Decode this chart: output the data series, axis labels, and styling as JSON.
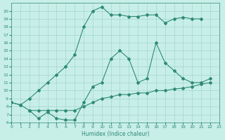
{
  "line1_x": [
    0,
    1,
    2,
    3,
    4,
    5,
    6,
    7,
    8,
    9,
    10,
    11,
    12,
    13,
    14,
    15,
    16,
    17,
    18,
    19,
    20,
    21
  ],
  "line1_y": [
    8.5,
    8.2,
    9.0,
    10.0,
    11.0,
    12.0,
    13.0,
    14.5,
    18.0,
    20.0,
    20.5,
    19.5,
    19.5,
    19.3,
    19.3,
    19.5,
    19.5,
    18.5,
    19.0,
    19.2,
    19.0,
    19.0
  ],
  "line2_x": [
    2,
    3,
    4,
    5,
    6,
    7,
    8,
    9,
    10,
    11,
    12,
    13,
    14,
    15,
    16,
    17,
    18,
    19,
    20,
    21,
    22
  ],
  "line2_y": [
    7.5,
    6.5,
    7.3,
    6.5,
    6.3,
    6.3,
    8.5,
    10.5,
    11.0,
    14.0,
    15.0,
    14.0,
    11.0,
    11.5,
    16.0,
    13.5,
    12.5,
    11.5,
    11.0,
    11.0,
    11.5
  ],
  "line3_x": [
    0,
    1,
    2,
    3,
    4,
    5,
    6,
    7,
    8,
    9,
    10,
    11,
    12,
    13,
    14,
    15,
    16,
    17,
    18,
    19,
    20,
    21,
    22
  ],
  "line3_y": [
    8.5,
    8.2,
    7.5,
    7.5,
    7.5,
    7.5,
    7.5,
    7.5,
    8.0,
    8.5,
    9.0,
    9.2,
    9.5,
    9.5,
    9.7,
    9.7,
    10.0,
    10.0,
    10.2,
    10.3,
    10.5,
    10.8,
    11.0
  ],
  "color": "#2E8B72",
  "bg_color": "#C8EEE8",
  "grid_color": "#A0D8CE",
  "xlabel": "Humidex (Indice chaleur)",
  "ylim": [
    6,
    21
  ],
  "xlim": [
    0,
    23
  ],
  "yticks": [
    6,
    7,
    8,
    9,
    10,
    11,
    12,
    13,
    14,
    15,
    16,
    17,
    18,
    19,
    20
  ],
  "xticks": [
    0,
    1,
    2,
    3,
    4,
    5,
    6,
    7,
    8,
    9,
    10,
    11,
    12,
    13,
    14,
    15,
    16,
    17,
    18,
    19,
    20,
    21,
    22,
    23
  ],
  "marker": "D",
  "markersize": 2,
  "linewidth": 0.8,
  "tick_fontsize": 4.5,
  "xlabel_fontsize": 5.5
}
